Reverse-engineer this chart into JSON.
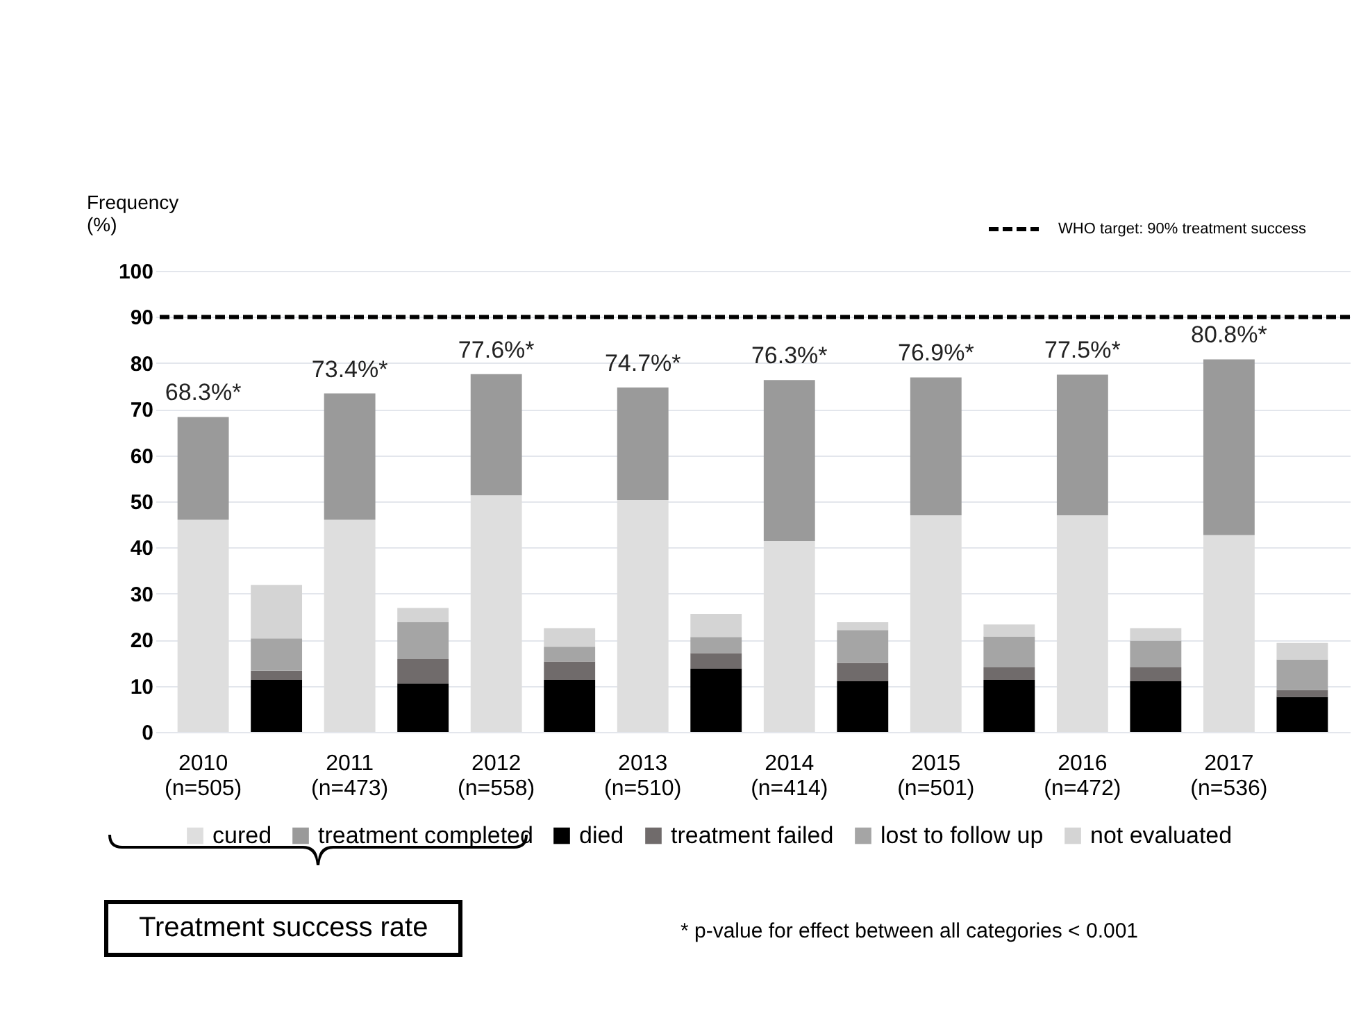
{
  "chart_data": {
    "type": "bar",
    "stacked": true,
    "ylabel": "Frequency (%)",
    "categories": [
      "2010\n(n=505)",
      null,
      "2011\n(n=473)",
      null,
      "2012\n(n=558)",
      null,
      "2013\n(n=510)",
      null,
      "2014\n(n=414)",
      null,
      "2015\n(n=501)",
      null,
      "2016\n(n=472)",
      null,
      "2017\n(n=536)",
      null
    ],
    "series": [
      {
        "name": "cured",
        "color": "#dedede",
        "values": [
          46,
          null,
          46,
          null,
          51.3,
          null,
          50.3,
          null,
          41.4,
          null,
          47,
          null,
          47,
          null,
          42.7,
          null
        ]
      },
      {
        "name": "treatment completed",
        "color": "#9a9a9a",
        "values": [
          22.3,
          null,
          27.4,
          null,
          26.3,
          null,
          24.4,
          null,
          34.9,
          null,
          29.9,
          null,
          30.5,
          null,
          38.1,
          null
        ]
      },
      {
        "name": "died",
        "color": "#000000",
        "values": [
          null,
          11.3,
          null,
          10.5,
          null,
          11.3,
          null,
          13.7,
          null,
          11,
          null,
          11.3,
          null,
          11,
          null,
          7.6
        ]
      },
      {
        "name": "treatment failed",
        "color": "#706b6b",
        "values": [
          null,
          2,
          null,
          5.3,
          null,
          4,
          null,
          3.4,
          null,
          4,
          null,
          2.7,
          null,
          3,
          null,
          1.5
        ]
      },
      {
        "name": "lost to follow up",
        "color": "#a5a5a5",
        "values": [
          null,
          7,
          null,
          8,
          null,
          3.2,
          null,
          3.5,
          null,
          7.1,
          null,
          6.7,
          null,
          5.8,
          null,
          6.6
        ]
      },
      {
        "name": "not evaluated",
        "color": "#d4d4d4",
        "values": [
          null,
          11.6,
          null,
          3.1,
          null,
          4,
          null,
          5,
          null,
          1.7,
          null,
          2.6,
          null,
          2.7,
          null,
          3.6
        ]
      }
    ],
    "totals": [
      "68.3%*",
      null,
      "73.4%*",
      null,
      "77.6%*",
      null,
      "74.7%*",
      null,
      "76.3%*",
      null,
      "76.9%*",
      null,
      "77.5%*",
      null,
      "80.8%*",
      null
    ],
    "ylim": [
      0,
      100
    ],
    "yticks": [
      0,
      10,
      20,
      30,
      40,
      50,
      60,
      70,
      80,
      90,
      100
    ],
    "grid": "y",
    "legend": "bottom",
    "ref_lines": [
      {
        "axis": "y",
        "value": 90,
        "label": "WHO target: 90% treatment success",
        "color": "#000000",
        "line_style": "dashed"
      }
    ],
    "annotations": [
      "Treatment success rate",
      "* p-value for effect between all categories < 0.001"
    ]
  }
}
